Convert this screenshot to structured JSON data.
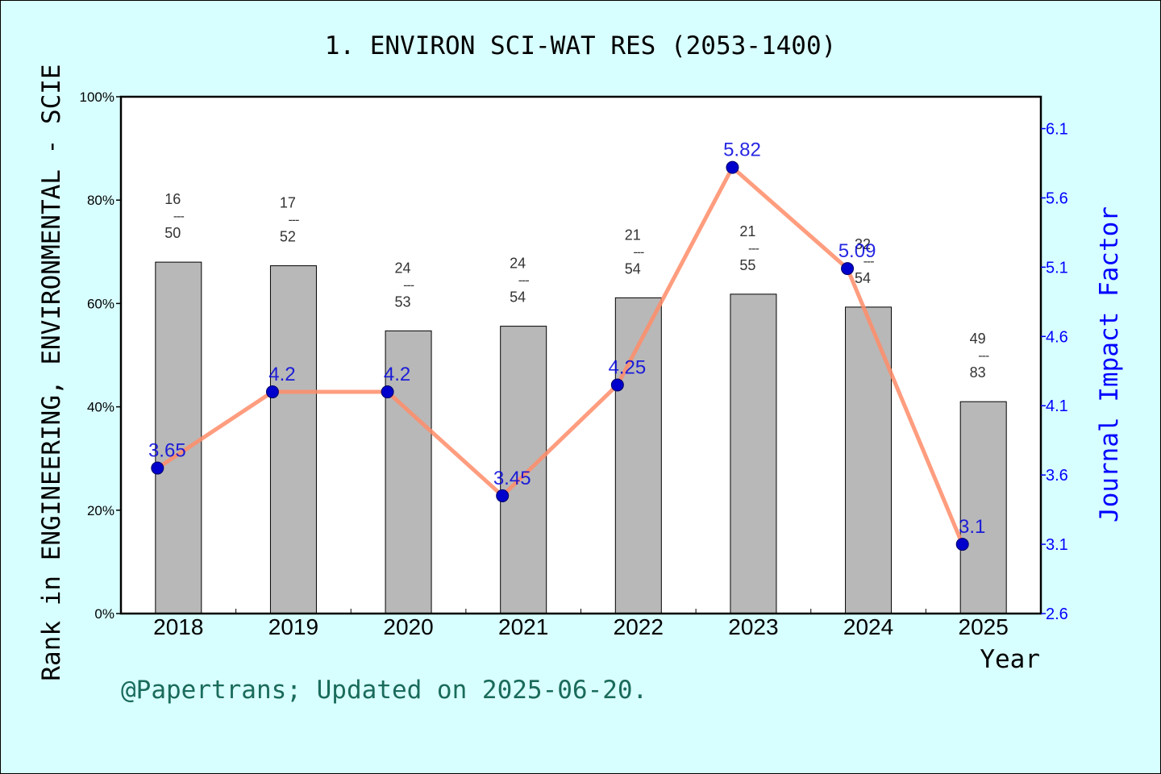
{
  "chart_data": {
    "type": "bar",
    "title": "1. ENVIRON SCI-WAT RES (2053-1400)",
    "xlabel": "Year",
    "ylabel": "Rank in ENGINEERING, ENVIRONMENTAL - SCIE",
    "y2label": "Journal Impact Factor",
    "categories": [
      "2018",
      "2019",
      "2020",
      "2021",
      "2022",
      "2023",
      "2024",
      "2025"
    ],
    "ylim": [
      0,
      100
    ],
    "y_ticks": [
      "0%",
      "20%",
      "40%",
      "60%",
      "80%",
      "100%"
    ],
    "y2lim": [
      2.6,
      6.33
    ],
    "y2_ticks": [
      "2.6",
      "3.1",
      "3.6",
      "4.1",
      "4.6",
      "5.1",
      "5.6",
      "6.1"
    ],
    "series": [
      {
        "kind": "bar",
        "values": [
          68,
          67.3,
          54.7,
          55.6,
          61.1,
          61.8,
          59.3,
          41.0
        ],
        "rank_top": [
          "16",
          "17",
          "24",
          "24",
          "21",
          "21",
          "32",
          "49"
        ],
        "rank_bottom": [
          "50",
          "52",
          "53",
          "54",
          "54",
          "55",
          "54",
          "83"
        ],
        "separator": "---"
      },
      {
        "kind": "line",
        "values": [
          3.65,
          4.2,
          4.2,
          3.45,
          4.25,
          5.82,
          5.09,
          3.1
        ],
        "labels": [
          "3.65",
          "4.2",
          "4.2",
          "3.45",
          "4.25",
          "5.82",
          "5.09",
          "3.1"
        ]
      }
    ],
    "grid": false,
    "colors": {
      "background": "#d8ffff",
      "bar": "#b8b8b8",
      "line": "#ff8c69",
      "marker": "#0000cc",
      "impact_label": "#0000dd",
      "right_axis": "#0000ff",
      "footer": "#1a6b5a"
    }
  },
  "footer": "@Papertrans; Updated on 2025-06-20."
}
